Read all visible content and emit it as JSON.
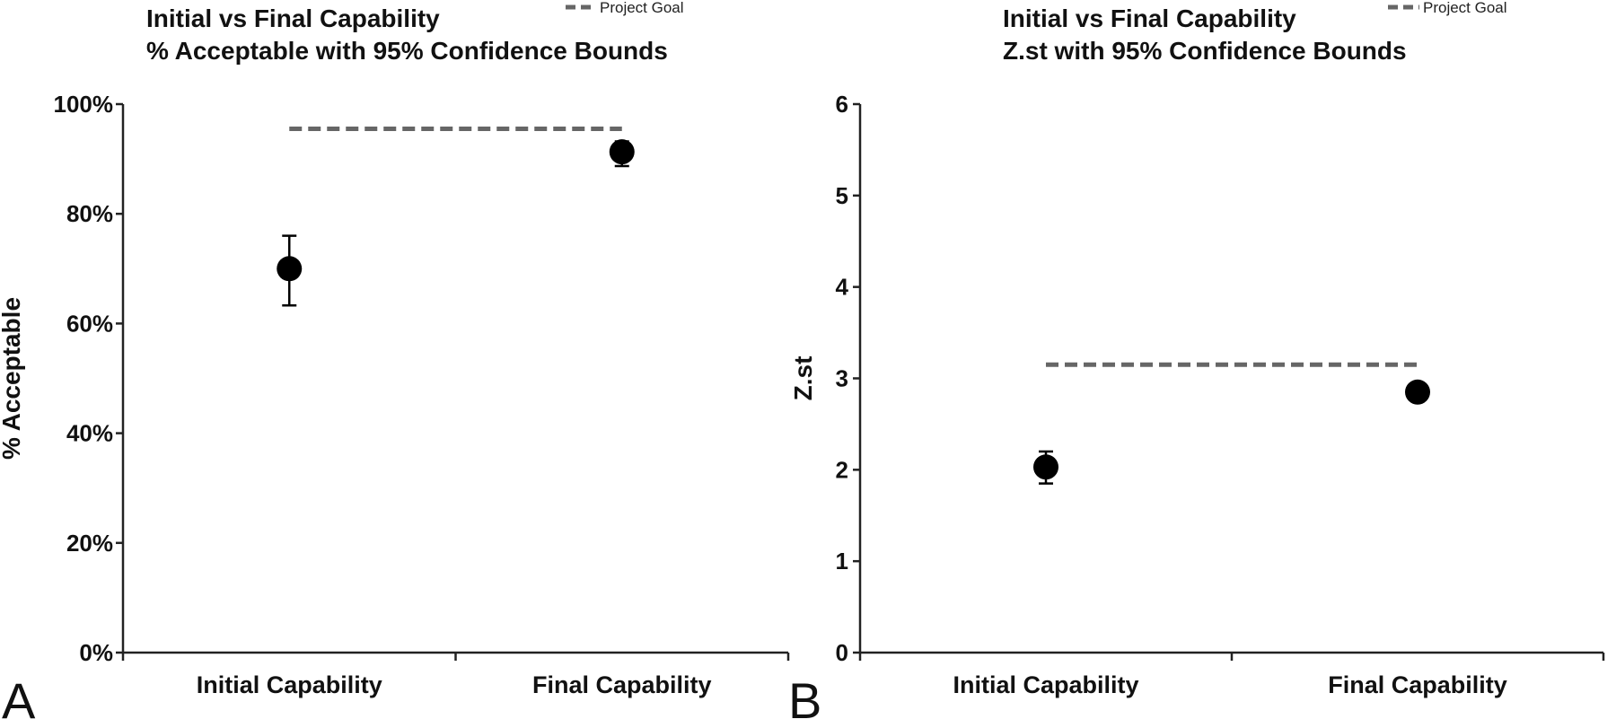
{
  "chart_data": [
    {
      "type": "scatter",
      "panel_label": "A",
      "title_lines": [
        "Initial vs Final Capability",
        "% Acceptable with 95% Confidence Bounds"
      ],
      "ylabel": "% Acceptable",
      "xlabel": "",
      "categories": [
        "Initial Capability",
        "Final Capability"
      ],
      "ylim": [
        0,
        100
      ],
      "yticks": [
        0,
        20,
        40,
        60,
        80,
        100
      ],
      "ytick_labels": [
        "0%",
        "20%",
        "40%",
        "60%",
        "80%",
        "100%"
      ],
      "series": [
        {
          "values": [
            70,
            91.3
          ],
          "lower": [
            63.3,
            88.7
          ],
          "upper": [
            76.0,
            93.2
          ]
        }
      ],
      "reference_line": {
        "name": "Project Goal",
        "value": 95.5,
        "style": "dashed",
        "color": "#666666"
      },
      "legend_position": "top-right",
      "grid": false,
      "colors": {
        "points": "#000000",
        "goal": "#666666"
      }
    },
    {
      "type": "scatter",
      "panel_label": "B",
      "title_lines": [
        "Initial vs Final Capability",
        "Z.st with 95% Confidence Bounds"
      ],
      "ylabel": "Z.st",
      "xlabel": "",
      "categories": [
        "Initial Capability",
        "Final Capability"
      ],
      "ylim": [
        0,
        6
      ],
      "yticks": [
        0,
        1,
        2,
        3,
        4,
        5,
        6
      ],
      "ytick_labels": [
        "0",
        "1",
        "2",
        "3",
        "4",
        "5",
        "6"
      ],
      "series": [
        {
          "values": [
            2.03,
            2.85
          ],
          "lower": [
            1.85,
            2.75
          ],
          "upper": [
            2.2,
            2.95
          ]
        }
      ],
      "reference_line": {
        "name": "Project Goal",
        "value": 3.15,
        "style": "dashed",
        "color": "#666666"
      },
      "legend_position": "top-right",
      "grid": false,
      "colors": {
        "points": "#000000",
        "goal": "#666666"
      }
    }
  ]
}
